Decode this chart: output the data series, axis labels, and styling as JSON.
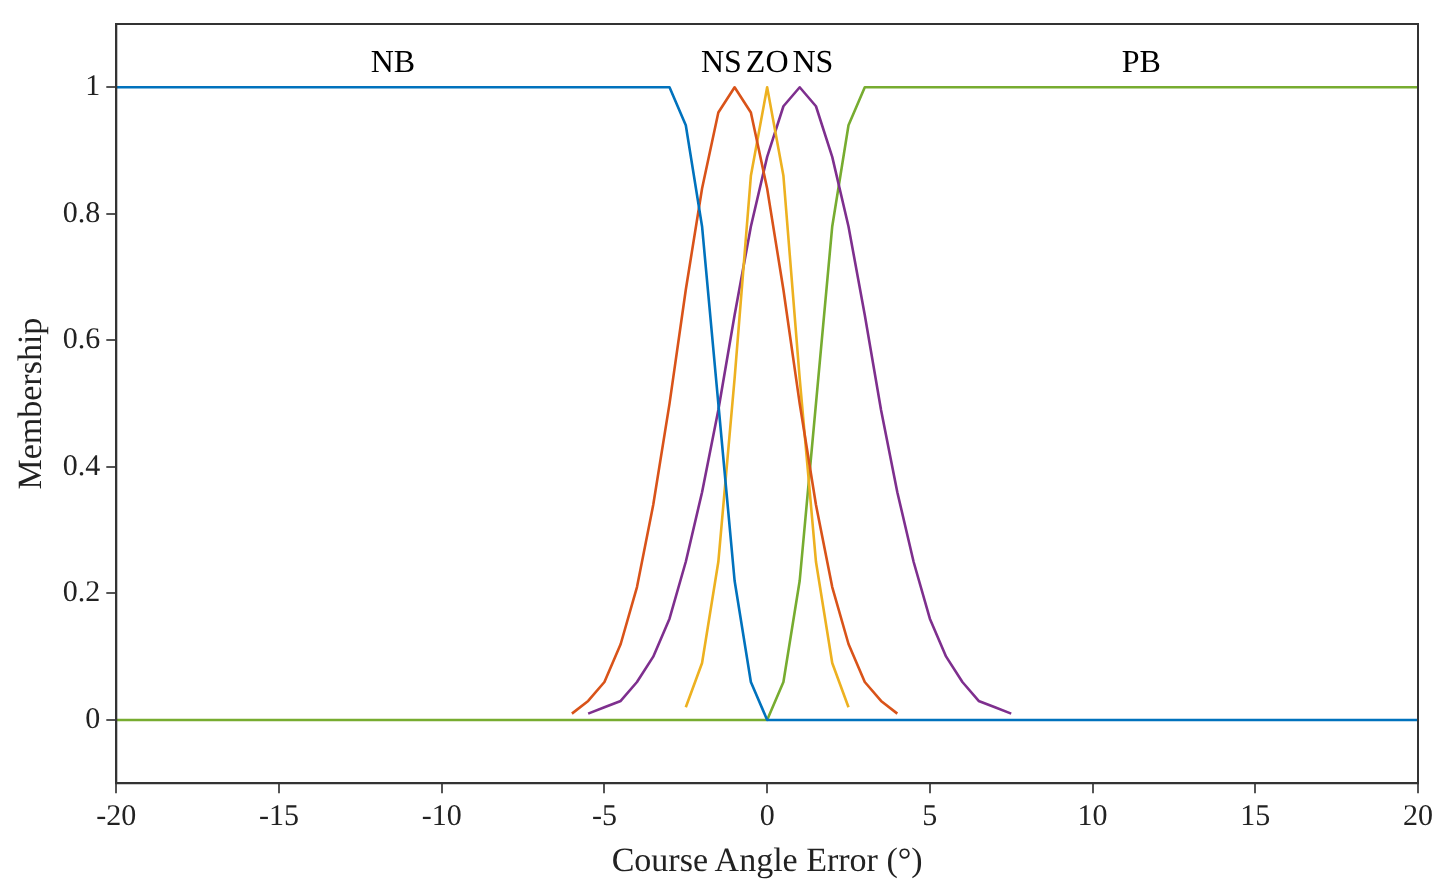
{
  "chart_data": {
    "type": "line",
    "xlabel": "Course Angle Error (°)",
    "ylabel": "Membership",
    "series": [
      {
        "name": "NB",
        "color": "#0072bd",
        "x": [
          -20,
          -3,
          -2.5,
          -2,
          -1.5,
          -1,
          -0.5,
          0,
          20
        ],
        "values": [
          1,
          1,
          0.94,
          0.78,
          0.5,
          0.22,
          0.06,
          0,
          0
        ]
      },
      {
        "name": "NS",
        "color": "#d95319",
        "x": [
          -6,
          -5.5,
          -5,
          -4.5,
          -4,
          -3.5,
          -3,
          -2.5,
          -2,
          -1.5,
          -1,
          -0.5,
          0,
          0.5,
          1,
          1.5,
          2,
          2.5,
          3,
          3.5,
          4
        ],
        "values": [
          0.01,
          0.03,
          0.06,
          0.12,
          0.21,
          0.34,
          0.5,
          0.68,
          0.84,
          0.96,
          1,
          0.96,
          0.84,
          0.68,
          0.5,
          0.34,
          0.21,
          0.12,
          0.06,
          0.03,
          0.01
        ]
      },
      {
        "name": "ZO",
        "color": "#edb120",
        "x": [
          -2.5,
          -2,
          -1.5,
          -1,
          -0.5,
          0,
          0.5,
          1,
          1.5,
          2,
          2.5
        ],
        "values": [
          0.02,
          0.09,
          0.25,
          0.54,
          0.86,
          1,
          0.86,
          0.54,
          0.25,
          0.09,
          0.02
        ]
      },
      {
        "name": "NS",
        "color": "#7e2f8e",
        "x": [
          -5.5,
          -5,
          -4.5,
          -4,
          -3.5,
          -3,
          -2.5,
          -2,
          -1.5,
          -1,
          -0.5,
          0,
          0.5,
          1,
          1.5,
          2,
          2.5,
          3,
          3.5,
          4,
          4.5,
          5,
          5.5,
          6,
          6.5,
          7,
          7.5
        ],
        "values": [
          0.01,
          0.02,
          0.03,
          0.06,
          0.1,
          0.16,
          0.25,
          0.36,
          0.49,
          0.64,
          0.78,
          0.89,
          0.97,
          1,
          0.97,
          0.89,
          0.78,
          0.64,
          0.49,
          0.36,
          0.25,
          0.16,
          0.1,
          0.06,
          0.03,
          0.02,
          0.01
        ]
      },
      {
        "name": "PB",
        "color": "#77ac30",
        "x": [
          -20,
          0,
          0.5,
          1,
          1.5,
          2,
          2.5,
          3,
          20
        ],
        "values": [
          0,
          0,
          0.06,
          0.22,
          0.5,
          0.78,
          0.94,
          1,
          1
        ]
      }
    ],
    "xlim": [
      -20,
      20
    ],
    "xticks": [
      -20,
      -15,
      -10,
      -5,
      0,
      5,
      10,
      15,
      20
    ],
    "ylim": [
      -0.1,
      1.1
    ],
    "yticks": [
      0,
      0.2,
      0.4,
      0.6,
      0.8,
      1
    ],
    "legend": false,
    "grid": false,
    "marker": "none",
    "line_style": "solid"
  }
}
